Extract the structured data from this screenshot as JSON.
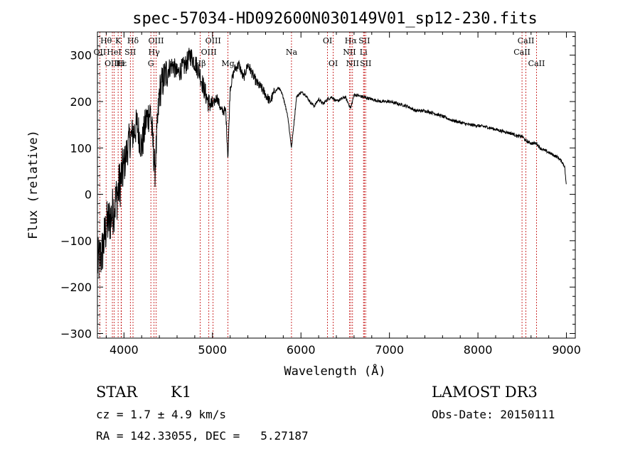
{
  "chart_data": {
    "type": "line",
    "title": "spec-57034-HD092600N030149V01_sp12-230.fits",
    "xlabel": "Wavelength (Å)",
    "ylabel": "Flux (relative)",
    "xlim": [
      3700,
      9100
    ],
    "ylim": [
      -310,
      350
    ],
    "x_ticks": [
      4000,
      5000,
      6000,
      7000,
      8000,
      9000
    ],
    "y_ticks": [
      -300,
      -200,
      -100,
      0,
      100,
      200,
      300
    ],
    "x_tick_labels": [
      "4000",
      "5000",
      "6000",
      "7000",
      "8000",
      "9000"
    ],
    "y_tick_labels": [
      "−300",
      "−200",
      "−100",
      "0",
      "100",
      "200",
      "300"
    ],
    "series": [
      {
        "name": "flux",
        "x": [
          3700,
          3750,
          3800,
          3850,
          3900,
          3950,
          4000,
          4050,
          4100,
          4150,
          4200,
          4250,
          4300,
          4350,
          4400,
          4450,
          4500,
          4550,
          4600,
          4650,
          4700,
          4750,
          4800,
          4850,
          4900,
          4950,
          5000,
          5050,
          5100,
          5150,
          5175,
          5200,
          5250,
          5300,
          5350,
          5400,
          5450,
          5500,
          5550,
          5600,
          5650,
          5700,
          5750,
          5800,
          5850,
          5893,
          5950,
          6000,
          6050,
          6100,
          6150,
          6200,
          6250,
          6300,
          6350,
          6400,
          6450,
          6500,
          6563,
          6600,
          6700,
          6800,
          6900,
          7000,
          7100,
          7200,
          7300,
          7400,
          7500,
          7600,
          7700,
          7800,
          7900,
          8000,
          8100,
          8200,
          8300,
          8400,
          8450,
          8500,
          8542,
          8600,
          8662,
          8700,
          8800,
          8900,
          8950,
          8980,
          9000
        ],
        "y": [
          -150,
          -130,
          -70,
          -50,
          -20,
          20,
          60,
          110,
          130,
          150,
          100,
          160,
          180,
          50,
          220,
          250,
          270,
          280,
          260,
          270,
          280,
          300,
          285,
          265,
          230,
          200,
          190,
          210,
          180,
          180,
          80,
          230,
          270,
          280,
          250,
          280,
          260,
          240,
          230,
          215,
          200,
          220,
          230,
          210,
          170,
          100,
          210,
          220,
          215,
          200,
          190,
          205,
          195,
          205,
          210,
          200,
          205,
          210,
          185,
          215,
          210,
          205,
          200,
          200,
          195,
          190,
          180,
          180,
          175,
          168,
          160,
          155,
          150,
          148,
          145,
          140,
          135,
          130,
          125,
          125,
          115,
          110,
          110,
          100,
          90,
          80,
          70,
          60,
          15
        ]
      }
    ],
    "line_markers": [
      {
        "label": "Hθ",
        "wave": 3798,
        "row": 0
      },
      {
        "label": "K",
        "wave": 3934,
        "row": 0
      },
      {
        "label": "Hδ",
        "wave": 4102,
        "row": 0
      },
      {
        "label": "OIII",
        "wave": 4363,
        "row": 0
      },
      {
        "label": "OIII",
        "wave": 5007,
        "row": 0
      },
      {
        "label": "OI",
        "wave": 6300,
        "row": 0
      },
      {
        "label": "Hα",
        "wave": 6563,
        "row": 0
      },
      {
        "label": "SII",
        "wave": 6716,
        "row": 0
      },
      {
        "label": "CaII",
        "wave": 8542,
        "row": 0
      },
      {
        "label": "OII",
        "wave": 3727,
        "row": 1
      },
      {
        "label": "HeI",
        "wave": 3889,
        "row": 1
      },
      {
        "label": "SII",
        "wave": 4072,
        "row": 1
      },
      {
        "label": "Hγ",
        "wave": 4340,
        "row": 1
      },
      {
        "label": "OIII",
        "wave": 4959,
        "row": 1
      },
      {
        "label": "Na",
        "wave": 5893,
        "row": 1
      },
      {
        "label": "NII",
        "wave": 6548,
        "row": 1
      },
      {
        "label": "Li",
        "wave": 6707,
        "row": 1
      },
      {
        "label": "CaII",
        "wave": 8498,
        "row": 1
      },
      {
        "label": "OIII",
        "wave": 3869,
        "row": 2
      },
      {
        "label": "Hε",
        "wave": 3970,
        "row": 2
      },
      {
        "label": "H",
        "wave": 3968,
        "row": 2
      },
      {
        "label": "G",
        "wave": 4304,
        "row": 2
      },
      {
        "label": "Hβ",
        "wave": 4861,
        "row": 2
      },
      {
        "label": "Mg",
        "wave": 5175,
        "row": 2
      },
      {
        "label": "OI",
        "wave": 6364,
        "row": 2
      },
      {
        "label": "NII",
        "wave": 6583,
        "row": 2
      },
      {
        "label": "SII",
        "wave": 6731,
        "row": 2
      },
      {
        "label": "CaII",
        "wave": 8662,
        "row": 2
      }
    ]
  },
  "info": {
    "class_label": "STAR",
    "subclass": "K1",
    "survey": "LAMOST DR3",
    "cz": "cz = 1.7 ± 4.9 km/s",
    "obs_date": "Obs-Date: 20150111",
    "coords": "RA = 142.33055, DEC =   5.27187"
  }
}
